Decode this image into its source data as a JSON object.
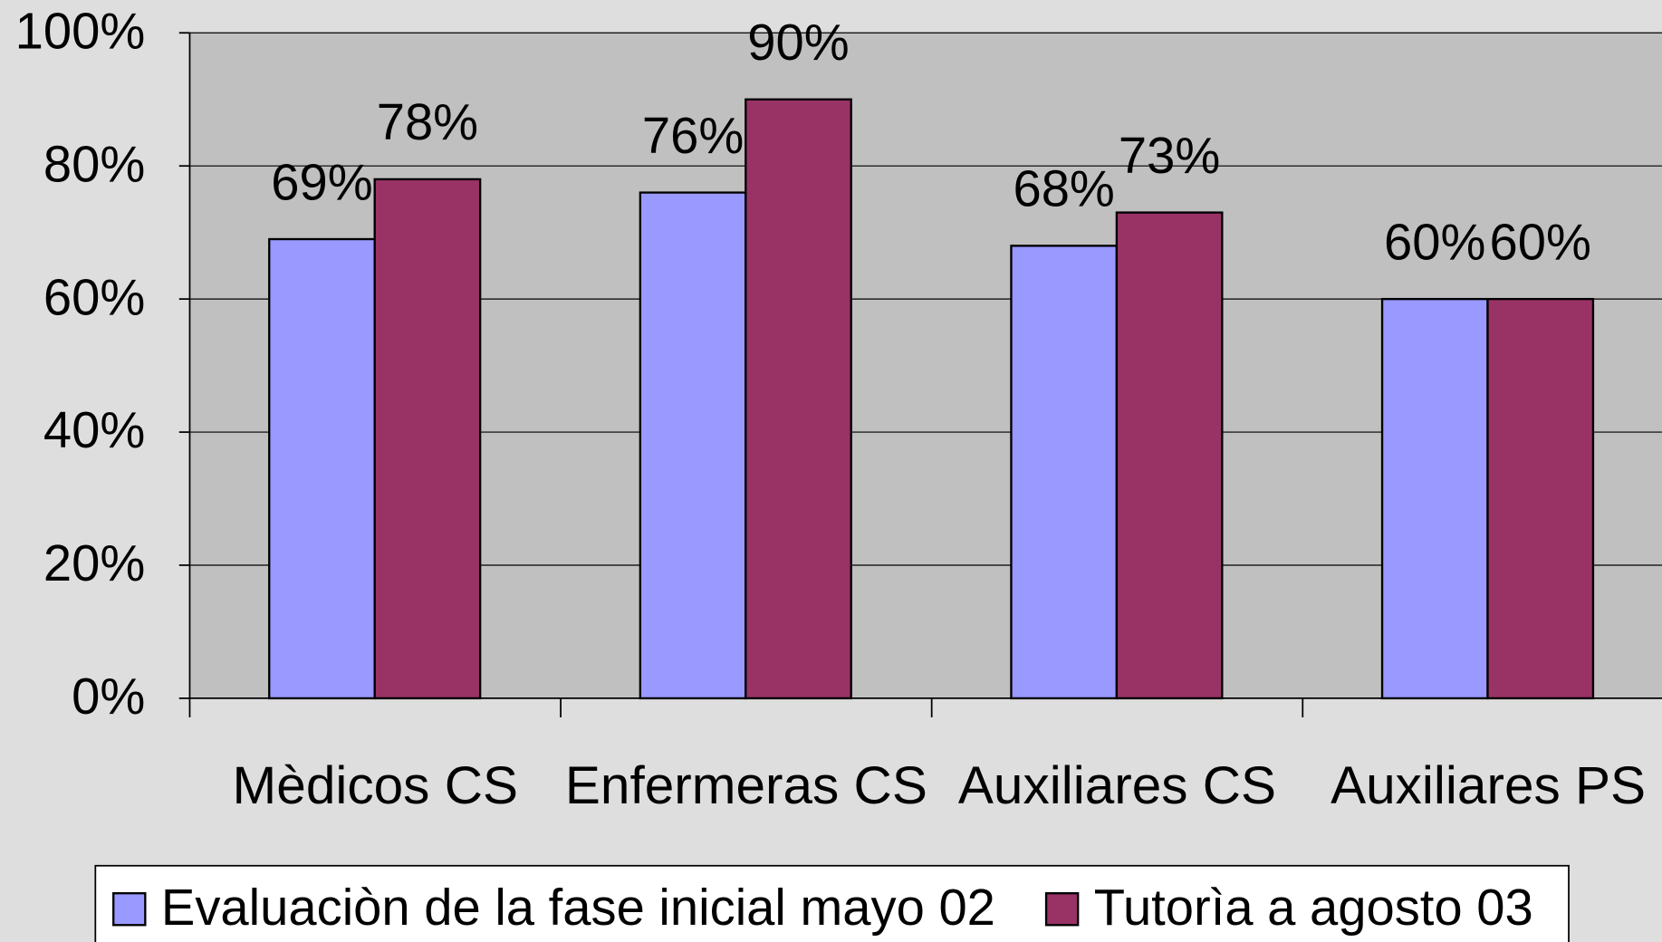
{
  "chart_data": {
    "type": "bar",
    "categories": [
      "Mèdicos CS",
      "Enfermeras CS",
      "Auxiliares CS",
      "Auxiliares PS"
    ],
    "series": [
      {
        "name": "Evaluaciòn de la fase inicial mayo 02",
        "color": "#9999ff",
        "values": [
          69,
          76,
          68,
          60
        ],
        "value_labels": [
          "69%",
          "76%",
          "68%",
          "60%"
        ]
      },
      {
        "name": "Tutorìa a agosto 03",
        "color": "#993366",
        "values": [
          78,
          90,
          73,
          60
        ],
        "value_labels": [
          "78%",
          "90%",
          "73%",
          "60%"
        ]
      }
    ],
    "ylim": [
      0,
      100
    ],
    "yticks": [
      {
        "value": 0,
        "label": "0%"
      },
      {
        "value": 20,
        "label": "20%"
      },
      {
        "value": 40,
        "label": "40%"
      },
      {
        "value": 60,
        "label": "60%"
      },
      {
        "value": 80,
        "label": "80%"
      },
      {
        "value": 100,
        "label": "100%"
      }
    ],
    "grid": true,
    "legend": "bottom"
  }
}
